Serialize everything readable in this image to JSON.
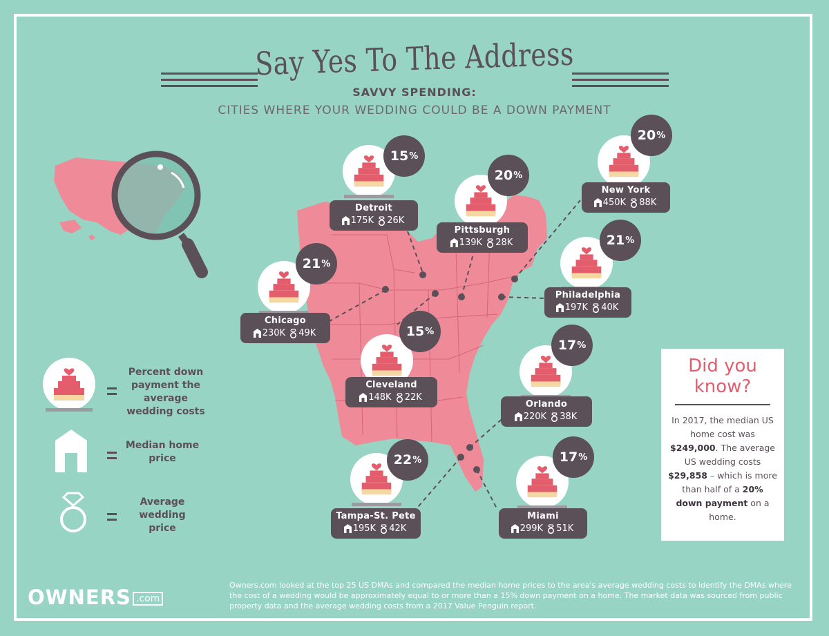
{
  "header": {
    "title": "Say Yes To The Address",
    "subtitle": "SAVVY SPENDING:",
    "tagline": "CITIES WHERE YOUR WEDDING COULD BE A DOWN PAYMENT"
  },
  "cities": [
    {
      "name": "Detroit",
      "percent": "15",
      "home": "175K",
      "wedding": "26K"
    },
    {
      "name": "Pittsburgh",
      "percent": "20",
      "home": "139K",
      "wedding": "28K"
    },
    {
      "name": "New York",
      "percent": "20",
      "home": "450K",
      "wedding": "88K"
    },
    {
      "name": "Chicago",
      "percent": "21",
      "home": "230K",
      "wedding": "49K"
    },
    {
      "name": "Philadelphia",
      "percent": "21",
      "home": "197K",
      "wedding": "40K"
    },
    {
      "name": "Cleveland",
      "percent": "15",
      "home": "148K",
      "wedding": "22K"
    },
    {
      "name": "Orlando",
      "percent": "17",
      "home": "220K",
      "wedding": "38K"
    },
    {
      "name": "Tampa-St. Pete",
      "percent": "22",
      "home": "195K",
      "wedding": "42K"
    },
    {
      "name": "Miami",
      "percent": "17",
      "home": "299K",
      "wedding": "51K"
    }
  ],
  "percent_sign": "%",
  "legend": {
    "cake": "Percent down payment the average wedding costs",
    "house": "Median home price",
    "ring": "Average wedding price"
  },
  "did_you_know": {
    "heading": "Did you know?",
    "p1": "In 2017, the median US home cost was ",
    "b1": "$249,000",
    "p2": ". The average US wedding costs ",
    "b2": "$29,858",
    "p3": " – which is more than half of a ",
    "b3": "20% down payment",
    "p4": " on a home."
  },
  "brand": {
    "name": "OWNERS",
    "suffix": ".com"
  },
  "footer": "Owners.com looked at the top 25 US DMAs and compared the median home prices to the area's average wedding costs to identify the DMAs where the cost of a wedding would be approximately equal to or more than a 15% down payment on a home. The market data was sourced from public property data and the average wedding costs from a 2017 Value Penguin report.",
  "colors": {
    "background": "#97d4c4",
    "map": "#ef8a98",
    "dark": "#5b4f58",
    "accent": "#e45d6c",
    "cake_tier": "#e45d6c",
    "cake_base": "#f5d7a1"
  },
  "icons": [
    "cake-icon",
    "house-icon",
    "ring-icon",
    "magnifier-icon"
  ]
}
